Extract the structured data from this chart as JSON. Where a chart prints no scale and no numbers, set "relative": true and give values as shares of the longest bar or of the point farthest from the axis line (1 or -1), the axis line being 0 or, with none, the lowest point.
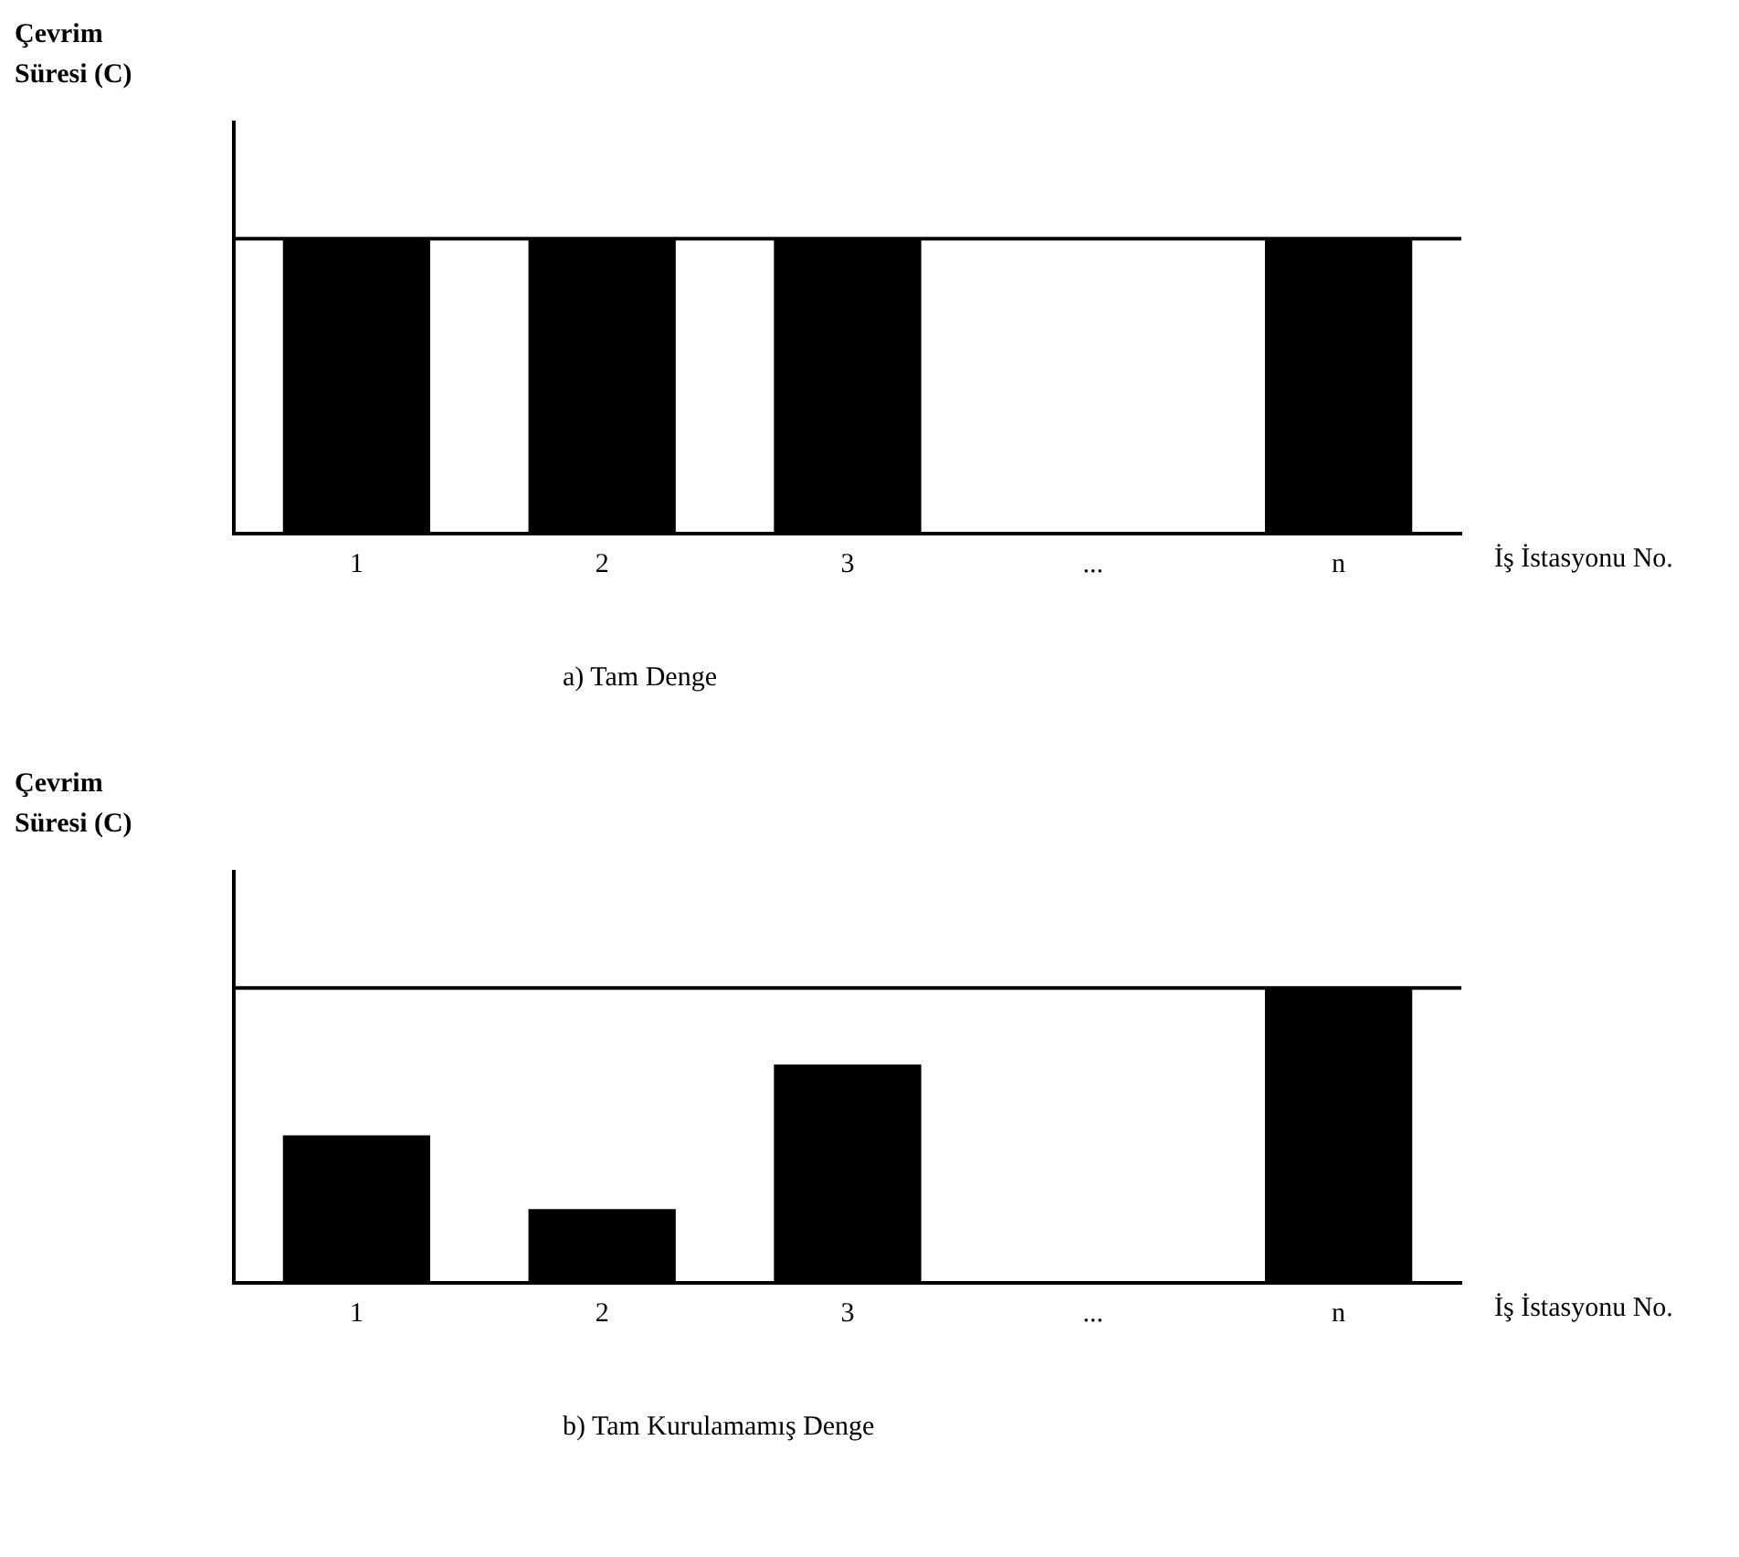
{
  "chart_data": [
    {
      "type": "bar",
      "title": "a) Tam Denge",
      "xlabel": "İş İstasyonu No.",
      "ylabel": "Çevrim Süresi (C)",
      "categories": [
        "1",
        "2",
        "3",
        "...",
        "n"
      ],
      "values": [
        1,
        1,
        1,
        null,
        1
      ],
      "color": "#000000",
      "relative": true,
      "ref_lines": [
        {
          "axis": "y",
          "value": 1
        }
      ]
    },
    {
      "type": "bar",
      "title": "b) Tam Kurulamamış Denge",
      "xlabel": "İş İstasyonu No.",
      "ylabel": "Çevrim Süresi (C)",
      "categories": [
        "1",
        "2",
        "3",
        "...",
        "n"
      ],
      "values": [
        0.5,
        0.25,
        0.74,
        null,
        1
      ],
      "color": "#000000",
      "relative": true,
      "ref_lines": [
        {
          "axis": "y",
          "value": 1
        }
      ]
    }
  ]
}
